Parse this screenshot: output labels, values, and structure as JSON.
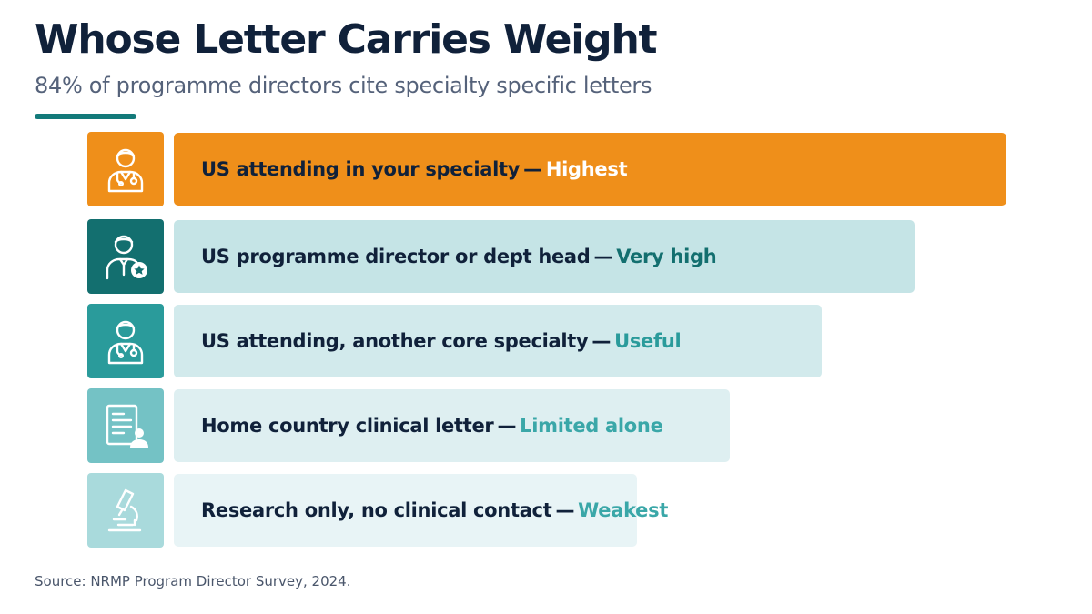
{
  "header": {
    "title": "Whose Letter Carries Weight",
    "subtitle": "84% of programme directors cite specialty specific letters"
  },
  "footer": {
    "source": "Source: NRMP Program Director Survey, 2024."
  },
  "colors": {
    "accent_rule": "#137a7a",
    "title": "#10213a"
  },
  "chart_data": {
    "type": "bar",
    "orientation": "horizontal",
    "categories": [
      "US attending in your specialty",
      "US programme director or dept head",
      "US attending, another core specialty",
      "Home country clinical letter",
      "Research only, no clinical contact"
    ],
    "ratings": [
      "Highest",
      "Very high",
      "Useful",
      "Limited alone",
      "Weakest"
    ],
    "values": [
      5,
      4,
      3,
      2,
      1
    ],
    "icons": [
      "doctor-icon",
      "director-star-icon",
      "doctor-icon",
      "document-person-icon",
      "microscope-icon"
    ],
    "bar_colors": [
      "#ef8f1a",
      "#c5e4e6",
      "#d2eaec",
      "#deeff1",
      "#e8f4f6"
    ],
    "icon_tile_colors": [
      "#ef8f1a",
      "#136f6f",
      "#2a9b9b",
      "#74c2c5",
      "#a9dadc"
    ],
    "rating_colors": [
      "#ffffff",
      "#136f6f",
      "#2a9b9b",
      "#3aa7a8",
      "#3aa7a8"
    ],
    "legend": "none",
    "grid": false
  }
}
